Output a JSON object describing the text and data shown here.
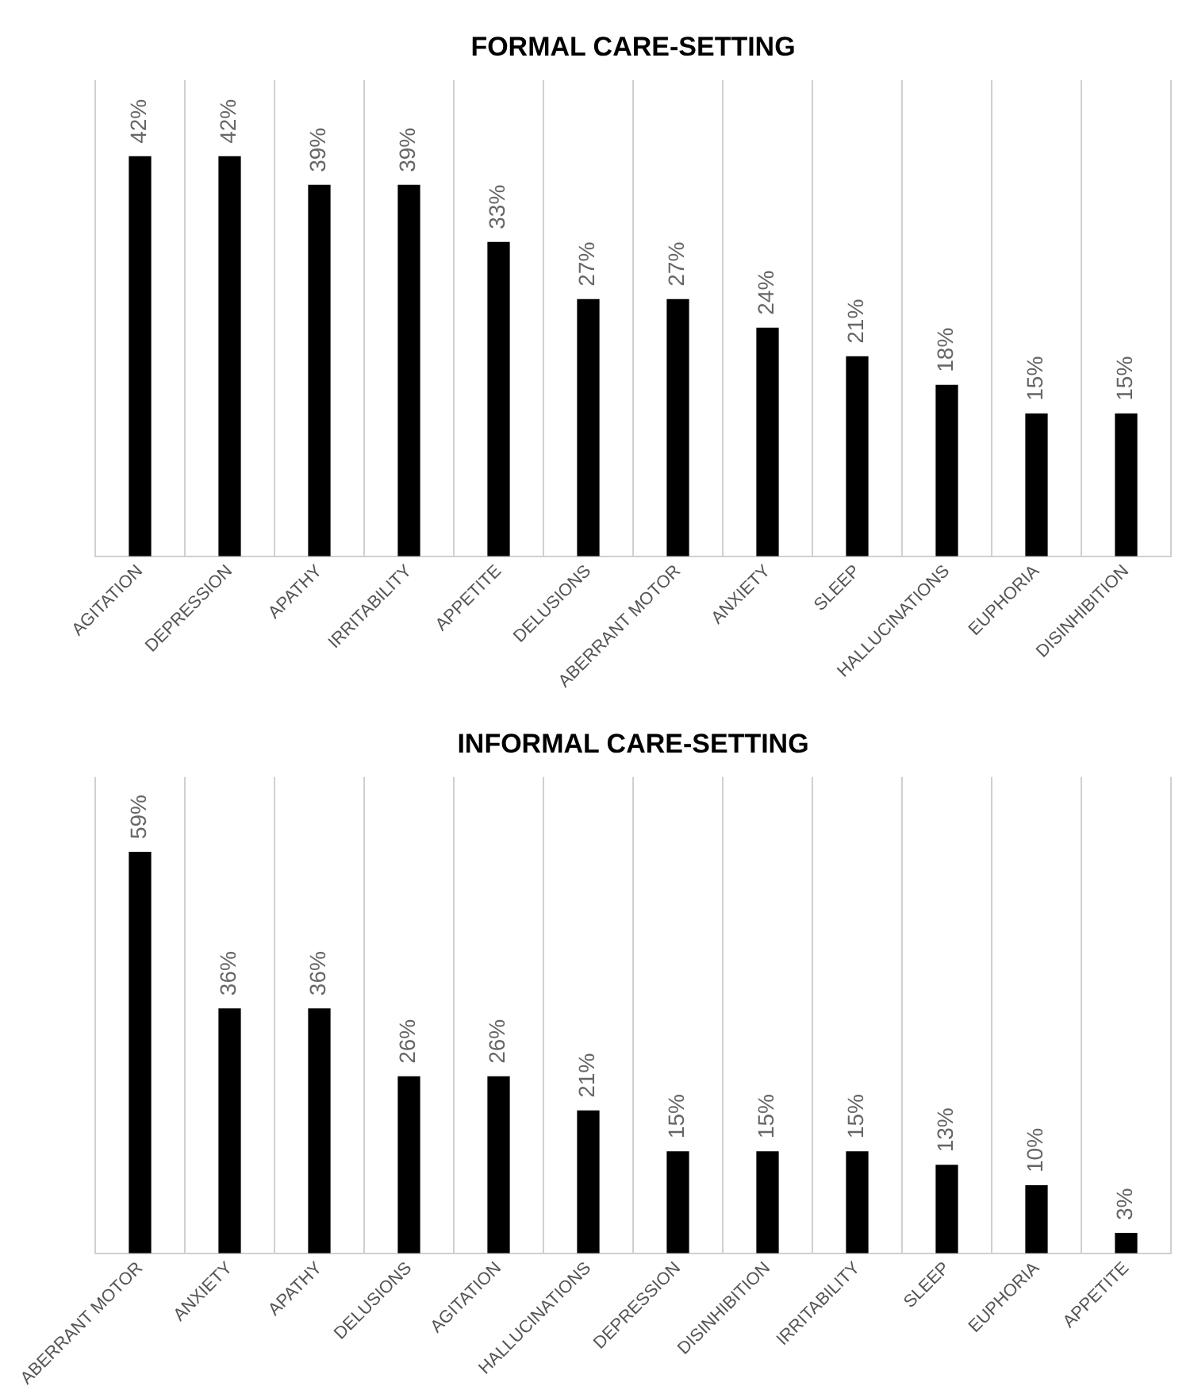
{
  "chart_data": [
    {
      "type": "bar",
      "title": "FORMAL CARE-SETTING",
      "categories": [
        "AGITATION",
        "DEPRESSION",
        "APATHY",
        "IRRITABILITY",
        "APPETITE",
        "DELUSIONS",
        "ABERRANT MOTOR",
        "ANXIETY",
        "SLEEP",
        "HALLUCINATIONS",
        "EUPHORIA",
        "DISINHIBITION"
      ],
      "values": [
        42,
        42,
        39,
        39,
        33,
        27,
        27,
        24,
        21,
        18,
        15,
        15
      ],
      "value_labels": [
        "42%",
        "42%",
        "39%",
        "39%",
        "33%",
        "27%",
        "27%",
        "24%",
        "21%",
        "18%",
        "15%",
        "15%"
      ],
      "color": "#000000",
      "grid": "x",
      "tick_labels": "x"
    },
    {
      "type": "bar",
      "title": "INFORMAL CARE-SETTING",
      "categories": [
        "ABERRANT MOTOR",
        "ANXIETY",
        "APATHY",
        "DELUSIONS",
        "AGITATION",
        "HALLUCINATIONS",
        "DEPRESSION",
        "DISINHIBITION",
        "IRRITABILITY",
        "SLEEP",
        "EUPHORIA",
        "APPETITE"
      ],
      "values": [
        59,
        36,
        36,
        26,
        26,
        21,
        15,
        15,
        15,
        13,
        10,
        3
      ],
      "value_labels": [
        "59%",
        "36%",
        "36%",
        "26%",
        "26%",
        "21%",
        "15%",
        "15%",
        "15%",
        "13%",
        "10%",
        "3%"
      ],
      "color": "#000000",
      "grid": "x",
      "tick_labels": "x"
    }
  ]
}
